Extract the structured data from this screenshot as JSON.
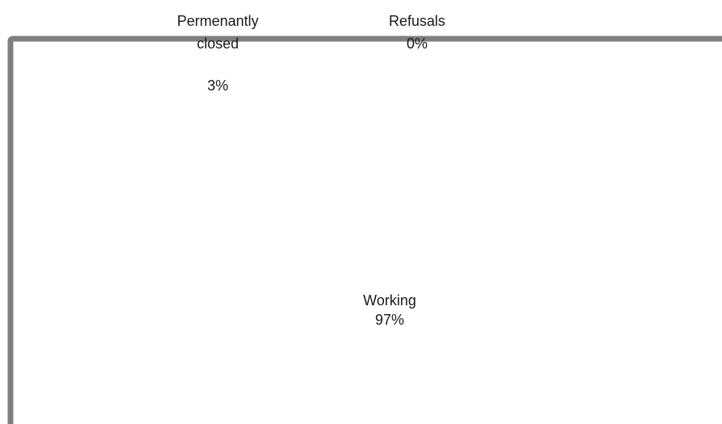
{
  "chart_data": {
    "type": "pie",
    "slices": [
      {
        "label": "Working",
        "value_label": "97%",
        "value": 97
      },
      {
        "label_lines": [
          "Permenantly",
          "closed"
        ],
        "value_label": "3%",
        "value": 3
      },
      {
        "label": "Refusals",
        "value_label": "0%",
        "value": 0
      }
    ],
    "colors": {
      "border": "#7f7f7f",
      "background": "#ffffff",
      "text": "#1a1a1a"
    }
  }
}
